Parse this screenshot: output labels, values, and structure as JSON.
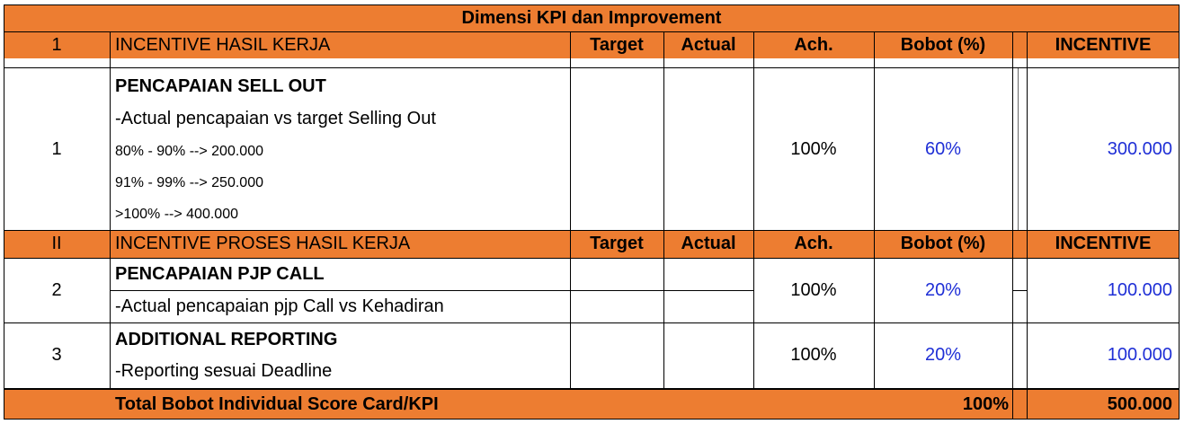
{
  "title": "Dimensi KPI dan Improvement",
  "colors": {
    "header_bg": "#ed7d31",
    "value_blue": "#1f2fd6"
  },
  "headers": {
    "row_I": {
      "no": "1",
      "label": "INCENTIVE HASIL KERJA",
      "target": "Target",
      "actual": "Actual",
      "ach": "Ach.",
      "bobot": "Bobot (%)",
      "incentive": "INCENTIVE"
    },
    "row_II": {
      "no": "II",
      "label": "INCENTIVE PROSES HASIL KERJA",
      "target": "Target",
      "actual": "Actual",
      "ach": "Ach.",
      "bobot": "Bobot (%)",
      "incentive": "INCENTIVE"
    }
  },
  "items": [
    {
      "no": "1",
      "title": "PENCAPAIAN SELL OUT",
      "desc": "-Actual pencapaian vs target Selling Out",
      "tiers": [
        "80% - 90% --> 200.000",
        "91% - 99% --> 250.000",
        ">100% --> 400.000"
      ],
      "ach": "100%",
      "bobot": "60%",
      "incentive": "300.000"
    },
    {
      "no": "2",
      "title": "PENCAPAIAN PJP CALL",
      "desc": "-Actual pencapaian pjp Call vs Kehadiran",
      "ach": "100%",
      "bobot": "20%",
      "incentive": "100.000"
    },
    {
      "no": "3",
      "title": "ADDITIONAL REPORTING",
      "desc": "-Reporting sesuai Deadline",
      "ach": "100%",
      "bobot": "20%",
      "incentive": "100.000"
    }
  ],
  "total": {
    "label": "Total Bobot Individual Score Card/KPI",
    "bobot": "100%",
    "incentive": "500.000"
  }
}
